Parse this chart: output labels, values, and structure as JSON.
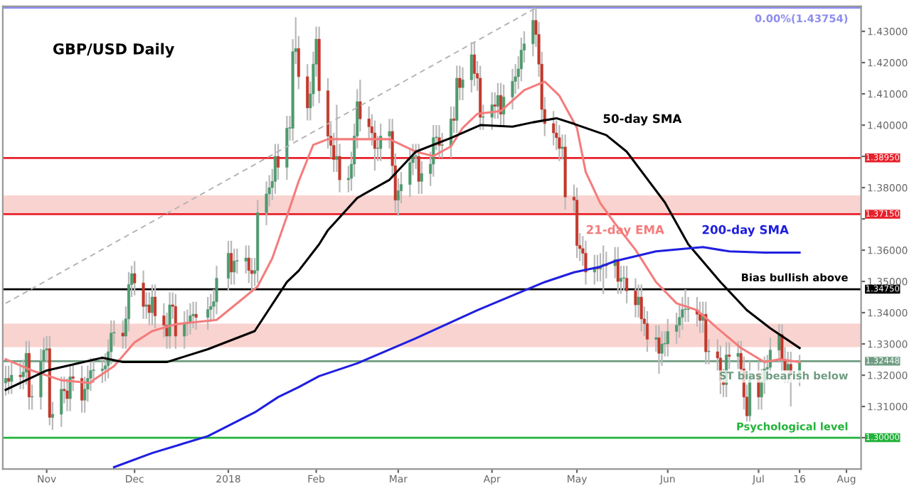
{
  "chart_data": {
    "type": "candlestick",
    "title": "GBP/USD Daily",
    "x": [
      "2017-10-18",
      "2017-10-19",
      "2017-10-20",
      "2017-10-23",
      "2017-10-24",
      "2017-10-25",
      "2017-10-26",
      "2017-10-27",
      "2017-10-30",
      "2017-10-31",
      "2017-11-01",
      "2017-11-02",
      "2017-11-03",
      "2017-11-06",
      "2017-11-07",
      "2017-11-08",
      "2017-11-09",
      "2017-11-10",
      "2017-11-13",
      "2017-11-14",
      "2017-11-15",
      "2017-11-16",
      "2017-11-17",
      "2017-11-20",
      "2017-11-21",
      "2017-11-22",
      "2017-11-23",
      "2017-11-24",
      "2017-11-27",
      "2017-11-28",
      "2017-11-29",
      "2017-11-30",
      "2017-12-01",
      "2017-12-04",
      "2017-12-05",
      "2017-12-06",
      "2017-12-07",
      "2017-12-08",
      "2017-12-11",
      "2017-12-12",
      "2017-12-13",
      "2017-12-14",
      "2017-12-15",
      "2017-12-18",
      "2017-12-19",
      "2017-12-20",
      "2017-12-21",
      "2017-12-22",
      "2017-12-26",
      "2017-12-27",
      "2017-12-28",
      "2017-12-29",
      "2018-01-02",
      "2018-01-03",
      "2018-01-04",
      "2018-01-05",
      "2018-01-08",
      "2018-01-09",
      "2018-01-10",
      "2018-01-11",
      "2018-01-12",
      "2018-01-15",
      "2018-01-16",
      "2018-01-17",
      "2018-01-18",
      "2018-01-19",
      "2018-01-22",
      "2018-01-23",
      "2018-01-24",
      "2018-01-25",
      "2018-01-26",
      "2018-01-29",
      "2018-01-30",
      "2018-01-31",
      "2018-02-01",
      "2018-02-02",
      "2018-02-05",
      "2018-02-06",
      "2018-02-07",
      "2018-02-08",
      "2018-02-09",
      "2018-02-12",
      "2018-02-13",
      "2018-02-14",
      "2018-02-15",
      "2018-02-16",
      "2018-02-19",
      "2018-02-20",
      "2018-02-21",
      "2018-02-22",
      "2018-02-23",
      "2018-02-26",
      "2018-02-27",
      "2018-02-28",
      "2018-03-01",
      "2018-03-02",
      "2018-03-05",
      "2018-03-06",
      "2018-03-07",
      "2018-03-08",
      "2018-03-09",
      "2018-03-12",
      "2018-03-13",
      "2018-03-14",
      "2018-03-15",
      "2018-03-16",
      "2018-03-19",
      "2018-03-20",
      "2018-03-21",
      "2018-03-22",
      "2018-03-23",
      "2018-03-26",
      "2018-03-27",
      "2018-03-28",
      "2018-03-29",
      "2018-03-30",
      "2018-04-02",
      "2018-04-03",
      "2018-04-04",
      "2018-04-05",
      "2018-04-06",
      "2018-04-09",
      "2018-04-10",
      "2018-04-11",
      "2018-04-12",
      "2018-04-13",
      "2018-04-16",
      "2018-04-17",
      "2018-04-18",
      "2018-04-19",
      "2018-04-20",
      "2018-04-23",
      "2018-04-24",
      "2018-04-25",
      "2018-04-26",
      "2018-04-27",
      "2018-04-30",
      "2018-05-01",
      "2018-05-02",
      "2018-05-03",
      "2018-05-04",
      "2018-05-07",
      "2018-05-08",
      "2018-05-09",
      "2018-05-10",
      "2018-05-11",
      "2018-05-14",
      "2018-05-15",
      "2018-05-16",
      "2018-05-17",
      "2018-05-18",
      "2018-05-21",
      "2018-05-22",
      "2018-05-23",
      "2018-05-24",
      "2018-05-25",
      "2018-05-28",
      "2018-05-29",
      "2018-05-30",
      "2018-05-31",
      "2018-06-01",
      "2018-06-04",
      "2018-06-05",
      "2018-06-06",
      "2018-06-07",
      "2018-06-08",
      "2018-06-11",
      "2018-06-12",
      "2018-06-13",
      "2018-06-14",
      "2018-06-15",
      "2018-06-18",
      "2018-06-19",
      "2018-06-20",
      "2018-06-21",
      "2018-06-22",
      "2018-06-25",
      "2018-06-26",
      "2018-06-27",
      "2018-06-28",
      "2018-06-29",
      "2018-07-02",
      "2018-07-03",
      "2018-07-04",
      "2018-07-05",
      "2018-07-06",
      "2018-07-09",
      "2018-07-10",
      "2018-07-11",
      "2018-07-12",
      "2018-07-13",
      "2018-07-16"
    ],
    "ohlc": [
      [
        1.3175,
        1.323,
        1.3135,
        1.319
      ],
      [
        1.319,
        1.323,
        1.314,
        1.318
      ],
      [
        1.318,
        1.324,
        1.314,
        1.32
      ],
      [
        1.32,
        1.324,
        1.3155,
        1.3195
      ],
      [
        1.3195,
        1.325,
        1.3155,
        1.321
      ],
      [
        1.321,
        1.331,
        1.317,
        1.327
      ],
      [
        1.327,
        1.331,
        1.309,
        1.313
      ],
      [
        1.313,
        1.317,
        1.309,
        1.313
      ],
      [
        1.313,
        1.3285,
        1.309,
        1.3245
      ],
      [
        1.3245,
        1.332,
        1.3205,
        1.328
      ],
      [
        1.328,
        1.3325,
        1.324,
        1.3285
      ],
      [
        1.3285,
        1.3325,
        1.304,
        1.3065
      ],
      [
        1.3065,
        1.3115,
        1.3025,
        1.3075
      ],
      [
        1.3075,
        1.3195,
        1.3035,
        1.3155
      ],
      [
        1.3155,
        1.3195,
        1.311,
        1.315
      ],
      [
        1.315,
        1.319,
        1.3085,
        1.3125
      ],
      [
        1.3125,
        1.3235,
        1.3085,
        1.3195
      ],
      [
        1.3195,
        1.3235,
        1.315,
        1.319
      ],
      [
        1.319,
        1.323,
        1.308,
        1.312
      ],
      [
        1.312,
        1.3195,
        1.308,
        1.3155
      ],
      [
        1.3155,
        1.323,
        1.3115,
        1.319
      ],
      [
        1.319,
        1.3255,
        1.315,
        1.3215
      ],
      [
        1.3215,
        1.3255,
        1.3175,
        1.3215
      ],
      [
        1.3215,
        1.326,
        1.3175,
        1.322
      ],
      [
        1.322,
        1.327,
        1.318,
        1.323
      ],
      [
        1.323,
        1.3315,
        1.319,
        1.3275
      ],
      [
        1.3275,
        1.3375,
        1.3235,
        1.3335
      ],
      [
        1.3335,
        1.3375,
        1.3295,
        1.3335
      ],
      [
        1.3335,
        1.3375,
        1.3285,
        1.3325
      ],
      [
        1.3325,
        1.342,
        1.3285,
        1.338
      ],
      [
        1.338,
        1.353,
        1.334,
        1.349
      ],
      [
        1.349,
        1.355,
        1.345,
        1.3525
      ],
      [
        1.3525,
        1.3565,
        1.3455,
        1.3495
      ],
      [
        1.3495,
        1.3535,
        1.338,
        1.342
      ],
      [
        1.342,
        1.3465,
        1.338,
        1.3425
      ],
      [
        1.3425,
        1.3465,
        1.336,
        1.34
      ],
      [
        1.34,
        1.349,
        1.336,
        1.345
      ],
      [
        1.345,
        1.349,
        1.335,
        1.339
      ],
      [
        1.339,
        1.343,
        1.332,
        1.336
      ],
      [
        1.336,
        1.34,
        1.3285,
        1.3325
      ],
      [
        1.3325,
        1.3465,
        1.3285,
        1.3425
      ],
      [
        1.3425,
        1.3465,
        1.338,
        1.342
      ],
      [
        1.342,
        1.346,
        1.3285,
        1.3325
      ],
      [
        1.3325,
        1.3405,
        1.3285,
        1.3365
      ],
      [
        1.3365,
        1.341,
        1.3325,
        1.337
      ],
      [
        1.337,
        1.343,
        1.333,
        1.339
      ],
      [
        1.339,
        1.3435,
        1.335,
        1.3395
      ],
      [
        1.3395,
        1.3435,
        1.3345,
        1.3385
      ],
      [
        1.3385,
        1.345,
        1.3345,
        1.341
      ],
      [
        1.341,
        1.346,
        1.337,
        1.342
      ],
      [
        1.342,
        1.3475,
        1.338,
        1.3435
      ],
      [
        1.3435,
        1.355,
        1.3395,
        1.351
      ],
      [
        1.351,
        1.363,
        1.347,
        1.359
      ],
      [
        1.359,
        1.363,
        1.349,
        1.353
      ],
      [
        1.353,
        1.3605,
        1.349,
        1.3565
      ],
      [
        1.3565,
        1.3605,
        1.3525,
        1.3565
      ],
      [
        1.3565,
        1.3615,
        1.3525,
        1.3575
      ],
      [
        1.3575,
        1.3615,
        1.3495,
        1.3535
      ],
      [
        1.3535,
        1.3575,
        1.3465,
        1.3525
      ],
      [
        1.3525,
        1.3575,
        1.3485,
        1.3535
      ],
      [
        1.3535,
        1.376,
        1.3495,
        1.372
      ],
      [
        1.372,
        1.382,
        1.368,
        1.378
      ],
      [
        1.378,
        1.384,
        1.374,
        1.38
      ],
      [
        1.38,
        1.386,
        1.376,
        1.382
      ],
      [
        1.382,
        1.394,
        1.378,
        1.39
      ],
      [
        1.39,
        1.394,
        1.3825,
        1.3865
      ],
      [
        1.3865,
        1.403,
        1.3825,
        1.399
      ],
      [
        1.399,
        1.403,
        1.395,
        1.399
      ],
      [
        1.399,
        1.4275,
        1.395,
        1.4235
      ],
      [
        1.4235,
        1.4345,
        1.4195,
        1.4245
      ],
      [
        1.4245,
        1.4285,
        1.4115,
        1.4155
      ],
      [
        1.4155,
        1.4195,
        1.4015,
        1.4055
      ],
      [
        1.4055,
        1.414,
        1.4015,
        1.41
      ],
      [
        1.41,
        1.4235,
        1.406,
        1.4195
      ],
      [
        1.4195,
        1.4315,
        1.4155,
        1.4275
      ],
      [
        1.4275,
        1.4315,
        1.407,
        1.411
      ],
      [
        1.411,
        1.415,
        1.3925,
        1.3965
      ],
      [
        1.3965,
        1.4005,
        1.3895,
        1.3935
      ],
      [
        1.3935,
        1.3975,
        1.385,
        1.389
      ],
      [
        1.389,
        1.4065,
        1.385,
        1.39
      ],
      [
        1.39,
        1.394,
        1.3785,
        1.3825
      ],
      [
        1.3825,
        1.387,
        1.3785,
        1.383
      ],
      [
        1.383,
        1.3915,
        1.379,
        1.3875
      ],
      [
        1.3875,
        1.4005,
        1.3835,
        1.3965
      ],
      [
        1.3965,
        1.4115,
        1.3925,
        1.4075
      ],
      [
        1.4075,
        1.4145,
        1.398,
        1.402
      ],
      [
        1.402,
        1.406,
        1.3955,
        1.3995
      ],
      [
        1.3995,
        1.4035,
        1.3935,
        1.3975
      ],
      [
        1.3975,
        1.4015,
        1.3855,
        1.3925
      ],
      [
        1.3925,
        1.3965,
        1.3885,
        1.3925
      ],
      [
        1.3925,
        1.4005,
        1.3885,
        1.3965
      ],
      [
        1.3965,
        1.402,
        1.3925,
        1.398
      ],
      [
        1.398,
        1.402,
        1.383,
        1.387
      ],
      [
        1.387,
        1.391,
        1.372,
        1.376
      ],
      [
        1.376,
        1.383,
        1.371,
        1.379
      ],
      [
        1.379,
        1.385,
        1.375,
        1.381
      ],
      [
        1.381,
        1.392,
        1.377,
        1.388
      ],
      [
        1.388,
        1.394,
        1.384,
        1.39
      ],
      [
        1.39,
        1.394,
        1.386,
        1.39
      ],
      [
        1.39,
        1.394,
        1.378,
        1.382
      ],
      [
        1.382,
        1.3885,
        1.378,
        1.3845
      ],
      [
        1.3845,
        1.3915,
        1.3805,
        1.3875
      ],
      [
        1.3875,
        1.4,
        1.3835,
        1.396
      ],
      [
        1.396,
        1.4,
        1.392,
        1.396
      ],
      [
        1.396,
        1.4,
        1.3895,
        1.3935
      ],
      [
        1.3935,
        1.3975,
        1.3895,
        1.3935
      ],
      [
        1.3935,
        1.406,
        1.3895,
        1.402
      ],
      [
        1.402,
        1.406,
        1.3975,
        1.4015
      ],
      [
        1.4015,
        1.419,
        1.3975,
        1.415
      ],
      [
        1.415,
        1.419,
        1.408,
        1.412
      ],
      [
        1.412,
        1.4185,
        1.408,
        1.4145
      ],
      [
        1.4145,
        1.4265,
        1.4105,
        1.4225
      ],
      [
        1.4225,
        1.4265,
        1.4125,
        1.4165
      ],
      [
        1.4165,
        1.4205,
        1.411,
        1.415
      ],
      [
        1.415,
        1.419,
        1.3985,
        1.4025
      ],
      [
        1.4025,
        1.4065,
        1.3985,
        1.4025
      ],
      [
        1.4025,
        1.4105,
        1.3985,
        1.4065
      ],
      [
        1.4065,
        1.4105,
        1.402,
        1.406
      ],
      [
        1.406,
        1.4135,
        1.402,
        1.4095
      ],
      [
        1.4095,
        1.4135,
        1.3995,
        1.4035
      ],
      [
        1.4035,
        1.413,
        1.3995,
        1.409
      ],
      [
        1.409,
        1.418,
        1.405,
        1.414
      ],
      [
        1.414,
        1.4195,
        1.41,
        1.4155
      ],
      [
        1.4155,
        1.422,
        1.4115,
        1.418
      ],
      [
        1.418,
        1.428,
        1.414,
        1.424
      ],
      [
        1.424,
        1.43,
        1.42,
        1.426
      ],
      [
        1.426,
        1.4375,
        1.422,
        1.4335
      ],
      [
        1.4335,
        1.43754,
        1.425,
        1.429
      ],
      [
        1.429,
        1.433,
        1.4155,
        1.4195
      ],
      [
        1.4195,
        1.4235,
        1.401,
        1.405
      ],
      [
        1.405,
        1.409,
        1.3965,
        1.4005
      ],
      [
        1.4005,
        1.4045,
        1.3935,
        1.3975
      ],
      [
        1.3975,
        1.4015,
        1.392,
        1.396
      ],
      [
        1.396,
        1.4,
        1.3885,
        1.3925
      ],
      [
        1.3925,
        1.397,
        1.389,
        1.393
      ],
      [
        1.393,
        1.397,
        1.373,
        1.377
      ],
      [
        1.377,
        1.381,
        1.372,
        1.376
      ],
      [
        1.376,
        1.38,
        1.3575,
        1.3615
      ],
      [
        1.3615,
        1.3655,
        1.3565,
        1.3605
      ],
      [
        1.3605,
        1.3645,
        1.355,
        1.359
      ],
      [
        1.359,
        1.363,
        1.349,
        1.353
      ],
      [
        1.353,
        1.3585,
        1.349,
        1.3545
      ],
      [
        1.3545,
        1.3585,
        1.35,
        1.354
      ],
      [
        1.354,
        1.359,
        1.35,
        1.355
      ],
      [
        1.355,
        1.3615,
        1.346,
        1.3555
      ],
      [
        1.3555,
        1.3595,
        1.351,
        1.355
      ],
      [
        1.355,
        1.361,
        1.351,
        1.357
      ],
      [
        1.357,
        1.361,
        1.346,
        1.35
      ],
      [
        1.35,
        1.355,
        1.346,
        1.351
      ],
      [
        1.351,
        1.355,
        1.347,
        1.351
      ],
      [
        1.351,
        1.355,
        1.343,
        1.347
      ],
      [
        1.347,
        1.351,
        1.3385,
        1.3425
      ],
      [
        1.3425,
        1.349,
        1.3385,
        1.345
      ],
      [
        1.345,
        1.349,
        1.334,
        1.338
      ],
      [
        1.338,
        1.342,
        1.3325,
        1.3365
      ],
      [
        1.3365,
        1.3405,
        1.3275,
        1.3315
      ],
      [
        1.3315,
        1.336,
        1.3275,
        1.332
      ],
      [
        1.332,
        1.336,
        1.3205,
        1.327
      ],
      [
        1.327,
        1.334,
        1.323,
        1.33
      ],
      [
        1.33,
        1.334,
        1.326,
        1.33
      ],
      [
        1.33,
        1.338,
        1.326,
        1.334
      ],
      [
        1.334,
        1.34,
        1.33,
        1.336
      ],
      [
        1.336,
        1.3425,
        1.332,
        1.3385
      ],
      [
        1.3385,
        1.345,
        1.3345,
        1.341
      ],
      [
        1.341,
        1.3475,
        1.337,
        1.341
      ],
      [
        1.341,
        1.345,
        1.337,
        1.341
      ],
      [
        1.341,
        1.345,
        1.3355,
        1.3395
      ],
      [
        1.3395,
        1.3435,
        1.3335,
        1.3375
      ],
      [
        1.3375,
        1.3435,
        1.3335,
        1.3395
      ],
      [
        1.3395,
        1.3435,
        1.3235,
        1.3275
      ],
      [
        1.3275,
        1.3315,
        1.3235,
        1.3275
      ],
      [
        1.3275,
        1.3315,
        1.3215,
        1.3255
      ],
      [
        1.3255,
        1.3295,
        1.314,
        1.318
      ],
      [
        1.318,
        1.322,
        1.313,
        1.317
      ],
      [
        1.317,
        1.3305,
        1.313,
        1.3265
      ],
      [
        1.3265,
        1.3305,
        1.322,
        1.326
      ],
      [
        1.326,
        1.331,
        1.322,
        1.327
      ],
      [
        1.327,
        1.331,
        1.318,
        1.322
      ],
      [
        1.322,
        1.326,
        1.309,
        1.313
      ],
      [
        1.313,
        1.317,
        1.305,
        1.307
      ],
      [
        1.307,
        1.3245,
        1.305,
        1.3205
      ],
      [
        1.3205,
        1.3245,
        1.309,
        1.313
      ],
      [
        1.313,
        1.322,
        1.309,
        1.318
      ],
      [
        1.318,
        1.326,
        1.314,
        1.322
      ],
      [
        1.322,
        1.3265,
        1.318,
        1.3225
      ],
      [
        1.3225,
        1.332,
        1.3185,
        1.328
      ],
      [
        1.328,
        1.3363,
        1.324,
        1.333
      ],
      [
        1.333,
        1.3363,
        1.321,
        1.325
      ],
      [
        1.325,
        1.329,
        1.3175,
        1.3215
      ],
      [
        1.3215,
        1.3275,
        1.3175,
        1.3235
      ],
      [
        1.3235,
        1.3275,
        1.31,
        1.3205
      ],
      [
        1.3205,
        1.3265,
        1.3165,
        1.324
      ]
    ],
    "series": [
      {
        "type": "line",
        "name": "21-day EMA",
        "color": "#f47c7c",
        "x": [
          "2017-10-18",
          "2017-10-27",
          "2017-11-06",
          "2017-11-16",
          "2017-11-17",
          "2017-11-24",
          "2017-12-01",
          "2017-12-07",
          "2017-12-15",
          "2017-12-29",
          "2018-01-08",
          "2018-01-12",
          "2018-01-17",
          "2018-01-22",
          "2018-01-26",
          "2018-01-31",
          "2018-02-05",
          "2018-02-15",
          "2018-02-26",
          "2018-03-07",
          "2018-03-13",
          "2018-03-19",
          "2018-03-23",
          "2018-03-28",
          "2018-04-05",
          "2018-04-13",
          "2018-04-20",
          "2018-04-25",
          "2018-05-01",
          "2018-05-04",
          "2018-05-09",
          "2018-05-14",
          "2018-05-21",
          "2018-05-28",
          "2018-06-04",
          "2018-06-11",
          "2018-06-18",
          "2018-06-26",
          "2018-07-04",
          "2018-07-09",
          "2018-07-16"
        ],
        "values": [
          1.3251,
          1.3215,
          1.3184,
          1.3175,
          1.3185,
          1.3229,
          1.3305,
          1.3341,
          1.3363,
          1.3377,
          1.3453,
          1.3484,
          1.3574,
          1.3708,
          1.382,
          1.3937,
          1.3955,
          1.3955,
          1.3955,
          1.3915,
          1.3901,
          1.3932,
          1.3991,
          1.4036,
          1.4045,
          1.4112,
          1.4139,
          1.4094,
          1.3991,
          1.385,
          1.375,
          1.3685,
          1.3601,
          1.3498,
          1.343,
          1.3408,
          1.335,
          1.3287,
          1.3242,
          1.3251,
          1.3242
        ]
      },
      {
        "type": "line",
        "name": "50-day SMA",
        "color": "#000000",
        "x": [
          "2017-10-18",
          "2017-11-01",
          "2017-11-20",
          "2017-11-27",
          "2017-12-12",
          "2017-12-26",
          "2018-01-11",
          "2018-01-22",
          "2018-01-26",
          "2018-02-02",
          "2018-02-05",
          "2018-02-15",
          "2018-02-26",
          "2018-03-07",
          "2018-03-19",
          "2018-03-29",
          "2018-04-09",
          "2018-04-16",
          "2018-04-24",
          "2018-04-30",
          "2018-05-11",
          "2018-05-18",
          "2018-05-31",
          "2018-06-08",
          "2018-06-19",
          "2018-06-28",
          "2018-07-06",
          "2018-07-16"
        ],
        "values": [
          1.3153,
          1.3215,
          1.3256,
          1.3242,
          1.3242,
          1.3283,
          1.3341,
          1.3498,
          1.3534,
          1.3619,
          1.3664,
          1.3767,
          1.3825,
          1.3915,
          1.3959,
          1.4,
          1.3995,
          1.4009,
          1.4022,
          1.4004,
          1.3968,
          1.3915,
          1.3753,
          1.3619,
          1.3498,
          1.3408,
          1.335,
          1.3287
        ]
      },
      {
        "type": "line",
        "name": "200-day SMA",
        "color": "#1f1fe0",
        "x": [
          "2017-11-24",
          "2017-12-07",
          "2017-12-26",
          "2018-01-11",
          "2018-01-19",
          "2018-01-26",
          "2018-02-02",
          "2018-02-15",
          "2018-03-07",
          "2018-03-28",
          "2018-04-20",
          "2018-04-30",
          "2018-05-09",
          "2018-05-14",
          "2018-05-28",
          "2018-06-13",
          "2018-06-22",
          "2018-07-04",
          "2018-07-16"
        ],
        "values": [
          1.2906,
          1.2951,
          1.3005,
          1.3081,
          1.313,
          1.3162,
          1.3197,
          1.3238,
          1.3318,
          1.3408,
          1.3498,
          1.3529,
          1.3547,
          1.3565,
          1.3596,
          1.361,
          1.3596,
          1.3592,
          1.3592
        ]
      },
      {
        "type": "line",
        "color": "#b4b4b4",
        "line_style": "dashed",
        "x": [
          "2017-10-18",
          "2018-04-17"
        ],
        "values": [
          1.343,
          1.4375
        ]
      }
    ],
    "ref_lines": [
      {
        "axis": "y",
        "value": 1.43754,
        "color": "#8c8cf0"
      },
      {
        "axis": "y",
        "value": 1.3895,
        "label": "1.38950",
        "color": "#e8202a"
      },
      {
        "axis": "y",
        "value": 1.3715,
        "label": "1.37150",
        "color": "#e8202a"
      },
      {
        "axis": "y",
        "value": 1.3475,
        "label": "1.34750",
        "color": "#000000"
      },
      {
        "axis": "y",
        "value": 1.32448,
        "label": "1.32448",
        "color": "#6f9c82"
      },
      {
        "axis": "y",
        "value": 1.3,
        "label": "1.30000",
        "color": "#22b33a"
      }
    ],
    "bands": [
      {
        "axis": "y",
        "from": 1.3715,
        "to": 1.3775,
        "color": "#f9d3cf"
      },
      {
        "axis": "y",
        "from": 1.329,
        "to": 1.3365,
        "color": "#f9d3cf"
      }
    ],
    "annotations": [
      "0.00%(1.43754)",
      "Bias bullish above",
      "ST bias bearish below",
      "Psychological level"
    ],
    "xlim": [
      "2017-10-17",
      "2018-08-06"
    ],
    "xticks": [
      {
        "value": "2017-11-01",
        "label": "Nov"
      },
      {
        "value": "2017-12-01",
        "label": "Dec"
      },
      {
        "value": "2018-01-02",
        "label": "2018"
      },
      {
        "value": "2018-02-01",
        "label": "Feb"
      },
      {
        "value": "2018-03-01",
        "label": "Mar"
      },
      {
        "value": "2018-04-02",
        "label": "Apr"
      },
      {
        "value": "2018-05-01",
        "label": "May"
      },
      {
        "value": "2018-06-01",
        "label": "Jun"
      },
      {
        "value": "2018-07-02",
        "label": "Jul"
      },
      {
        "value": "2018-07-16",
        "label": "16"
      },
      {
        "value": "2018-08-01",
        "label": "Aug"
      }
    ],
    "ylim": [
      1.29,
      1.438
    ],
    "yticks": [
      {
        "value": 1.3,
        "label": null
      },
      {
        "value": 1.31,
        "label": "1.31000"
      },
      {
        "value": 1.32,
        "label": "1.32000"
      },
      {
        "value": 1.33,
        "label": "1.33000"
      },
      {
        "value": 1.34,
        "label": "1.34000"
      },
      {
        "value": 1.35,
        "label": "1.35000"
      },
      {
        "value": 1.36,
        "label": "1.36000"
      },
      {
        "value": 1.37,
        "label": null
      },
      {
        "value": 1.38,
        "label": "1.38000"
      },
      {
        "value": 1.39,
        "label": null
      },
      {
        "value": 1.4,
        "label": "1.40000"
      },
      {
        "value": 1.41,
        "label": "1.41000"
      },
      {
        "value": 1.42,
        "label": "1.42000"
      },
      {
        "value": 1.43,
        "label": "1.43000"
      }
    ],
    "grid": false,
    "legend": false
  }
}
